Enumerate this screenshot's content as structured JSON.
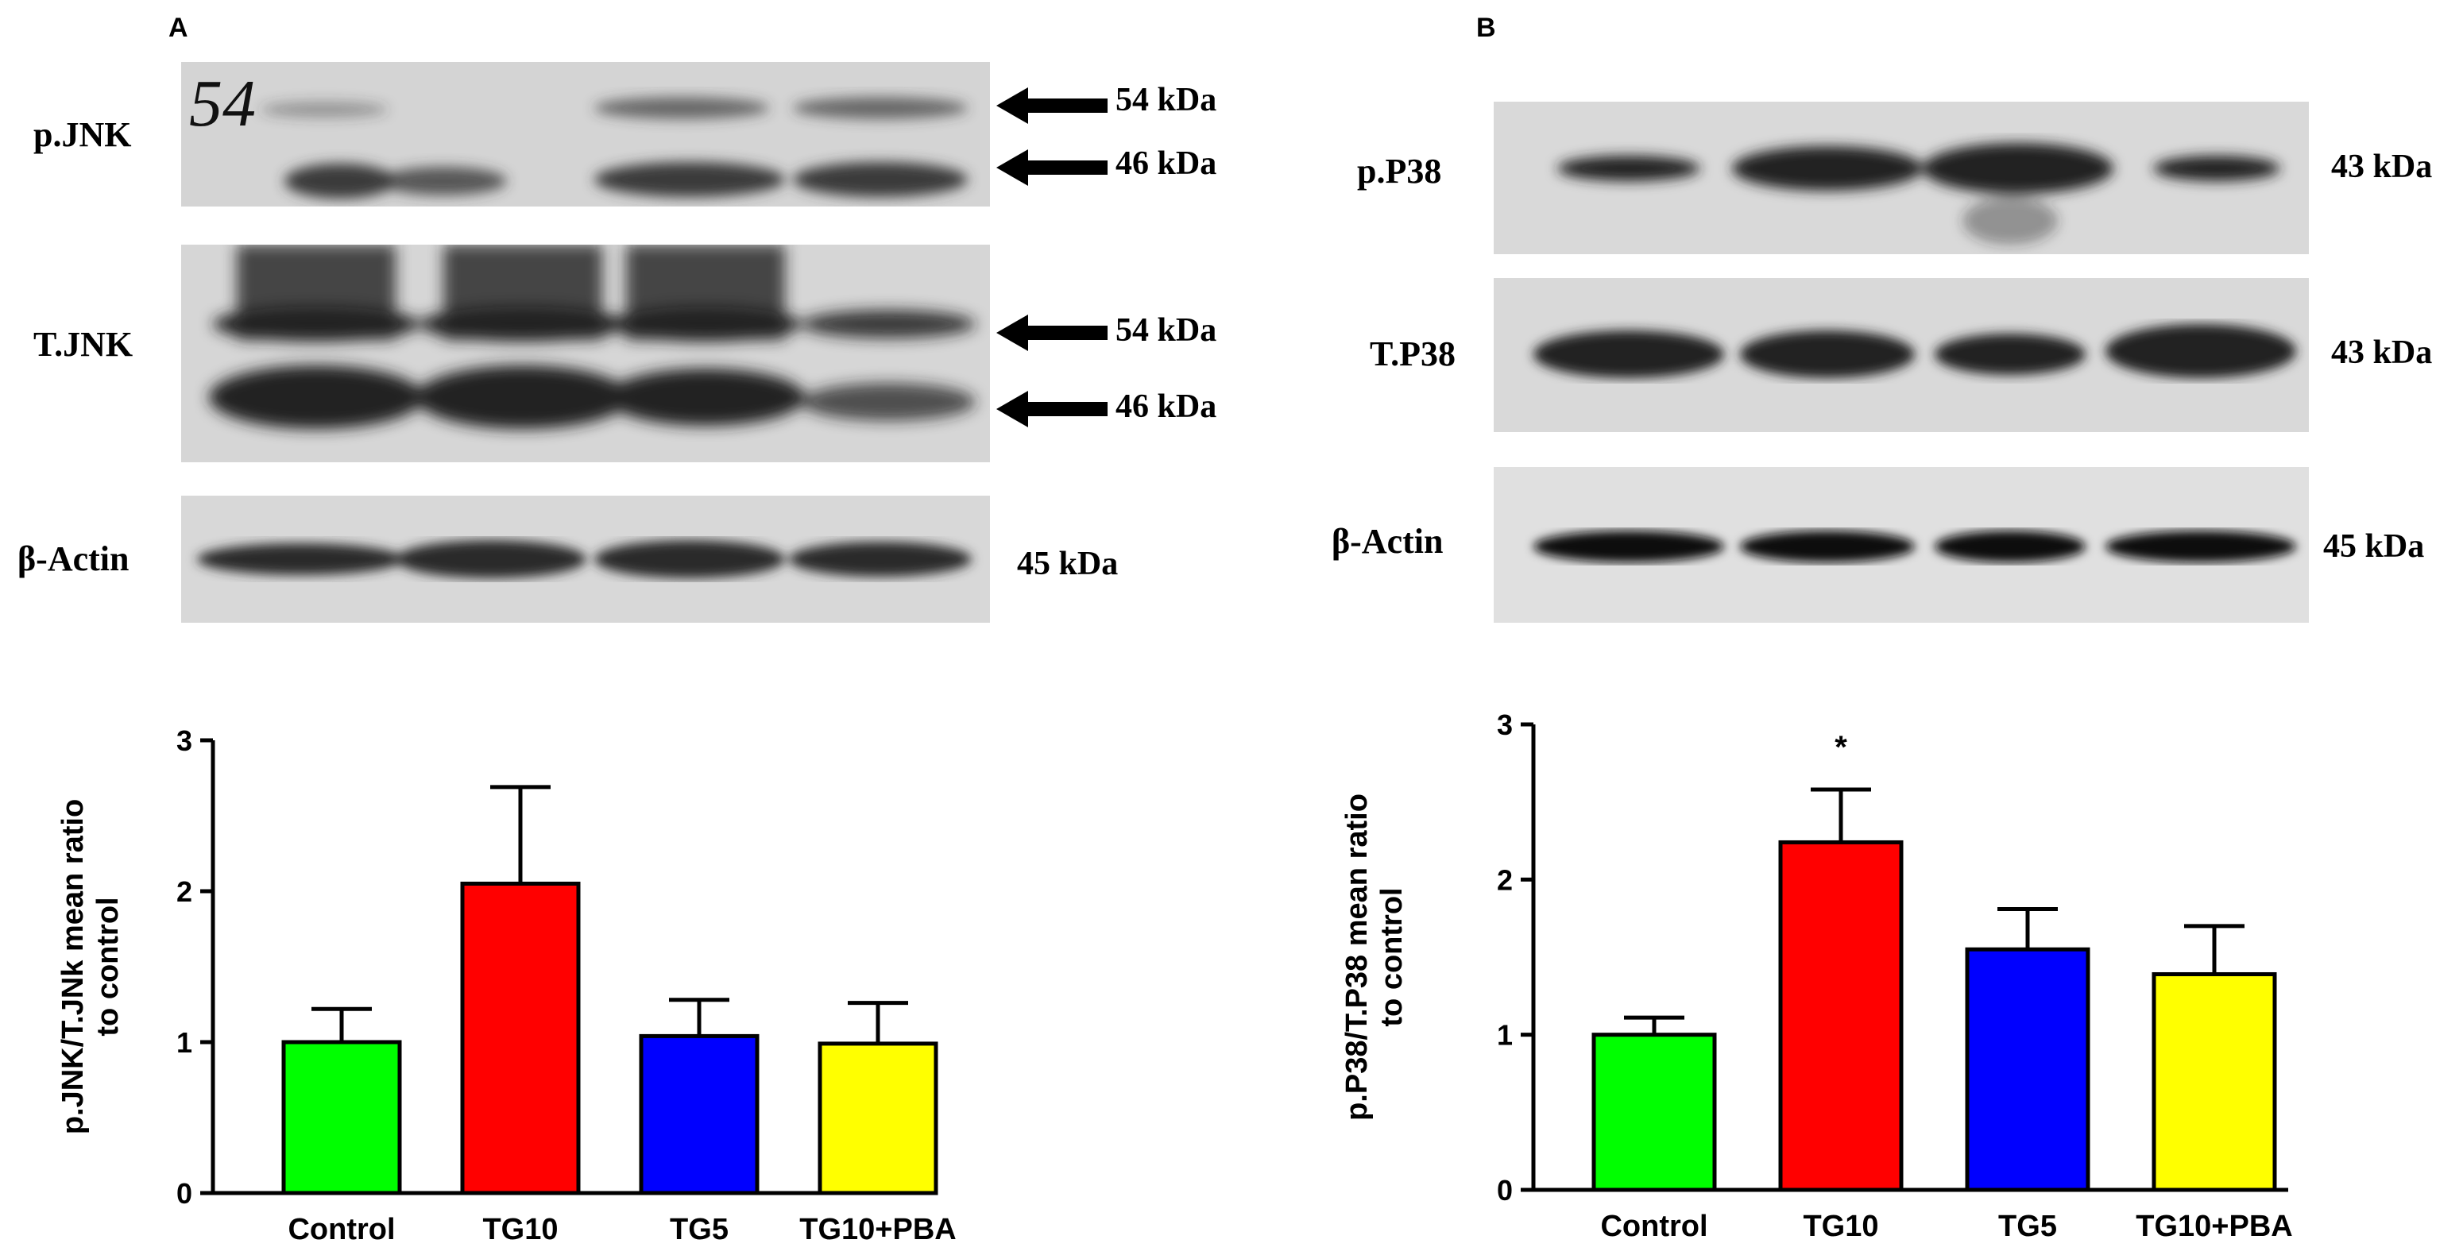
{
  "panels": {
    "A": {
      "letter": "A",
      "blots": [
        {
          "label": "p.JNK",
          "markers": [
            "54 kDa",
            "46 kDa"
          ],
          "handwriting": "54"
        },
        {
          "label": "T.JNK",
          "markers": [
            "54 kDa",
            "46 kDa"
          ]
        },
        {
          "label": "β-Actin",
          "markers": [
            "45 kDa"
          ]
        }
      ]
    },
    "B": {
      "letter": "B",
      "blots": [
        {
          "label": "p.P38",
          "markers": [
            "43 kDa"
          ]
        },
        {
          "label": "T.P38",
          "markers": [
            "43 kDa"
          ]
        },
        {
          "label": "β-Actin",
          "markers": [
            "45 kDa"
          ]
        }
      ]
    }
  },
  "chart_data": [
    {
      "type": "bar",
      "title": "",
      "xlabel": "",
      "ylabel": "p.JNK/T.JNk mean ratio to control",
      "ylabel_lines": [
        "p.JNK/T.JNk mean ratio",
        "to control"
      ],
      "categories": [
        "Control",
        "TG10",
        "TG5",
        "TG10+PBA"
      ],
      "values": [
        1.0,
        2.05,
        1.04,
        0.99
      ],
      "errors": [
        0.22,
        0.64,
        0.24,
        0.27
      ],
      "colors": [
        "#00ff00",
        "#ff0000",
        "#0000ff",
        "#ffff00"
      ],
      "ylim": [
        0,
        3
      ],
      "yticks": [
        "0",
        "1",
        "2",
        "3"
      ],
      "annotations": []
    },
    {
      "type": "bar",
      "title": "",
      "xlabel": "",
      "ylabel": "p.P38/T.P38 mean ratio to control",
      "ylabel_lines": [
        "p.P38/T.P38 mean ratio",
        "to control"
      ],
      "categories": [
        "Control",
        "TG10",
        "TG5",
        "TG10+PBA"
      ],
      "values": [
        1.0,
        2.24,
        1.55,
        1.39
      ],
      "errors": [
        0.11,
        0.34,
        0.26,
        0.31
      ],
      "colors": [
        "#00ff00",
        "#ff0000",
        "#0000ff",
        "#ffff00"
      ],
      "ylim": [
        0,
        3
      ],
      "yticks": [
        "0",
        "1",
        "2",
        "3"
      ],
      "annotations": [
        {
          "category": "TG10",
          "text": "*"
        }
      ]
    }
  ]
}
